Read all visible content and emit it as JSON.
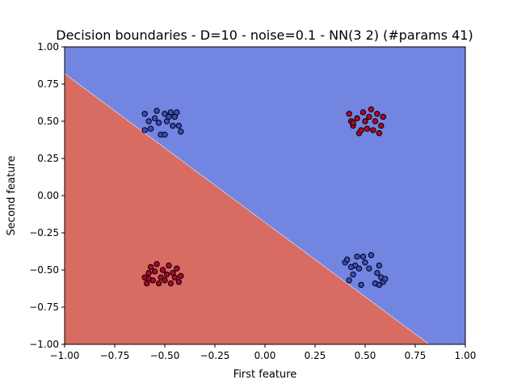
{
  "chart_data": {
    "type": "scatter",
    "title": "Decision boundaries - D=10 - noise=0.1 - NN(3 2) (#params 41)",
    "xlabel": "First feature",
    "ylabel": "Second feature",
    "xlim": [
      -1.0,
      1.0
    ],
    "ylim": [
      -1.0,
      1.0
    ],
    "xticks": [
      "−1.00",
      "−0.75",
      "−0.50",
      "−0.25",
      "0.00",
      "0.25",
      "0.50",
      "0.75",
      "1.00"
    ],
    "yticks": [
      "−1.00",
      "−0.75",
      "−0.50",
      "−0.25",
      "0.00",
      "0.25",
      "0.50",
      "0.75",
      "1.00"
    ],
    "grid": false,
    "legend": "none",
    "decision_regions": {
      "boundary_line": {
        "x1": -1.0,
        "y1": 0.82,
        "x2": 0.82,
        "y2": -1.0
      },
      "upper_right_class": "blue",
      "lower_left_class": "red",
      "colors": {
        "blue": "#7285e1",
        "red": "#d86b62"
      }
    },
    "series": [
      {
        "class": "blue",
        "color": "#3b4cc0",
        "points": [
          [
            -0.6,
            0.55
          ],
          [
            -0.58,
            0.5
          ],
          [
            -0.57,
            0.45
          ],
          [
            -0.55,
            0.52
          ],
          [
            -0.54,
            0.57
          ],
          [
            -0.53,
            0.49
          ],
          [
            -0.52,
            0.41
          ],
          [
            -0.5,
            0.55
          ],
          [
            -0.5,
            0.41
          ],
          [
            -0.49,
            0.5
          ],
          [
            -0.47,
            0.56
          ],
          [
            -0.46,
            0.47
          ],
          [
            -0.45,
            0.53
          ],
          [
            -0.43,
            0.47
          ],
          [
            -0.42,
            0.43
          ],
          [
            -0.6,
            0.44
          ],
          [
            -0.48,
            0.53
          ],
          [
            -0.44,
            0.56
          ],
          [
            0.4,
            -0.45
          ],
          [
            0.41,
            -0.43
          ],
          [
            0.42,
            -0.57
          ],
          [
            0.44,
            -0.53
          ],
          [
            0.45,
            -0.47
          ],
          [
            0.46,
            -0.41
          ],
          [
            0.47,
            -0.49
          ],
          [
            0.48,
            -0.6
          ],
          [
            0.49,
            -0.41
          ],
          [
            0.5,
            -0.45
          ],
          [
            0.52,
            -0.49
          ],
          [
            0.53,
            -0.4
          ],
          [
            0.55,
            -0.59
          ],
          [
            0.56,
            -0.52
          ],
          [
            0.57,
            -0.47
          ],
          [
            0.58,
            -0.55
          ],
          [
            0.59,
            -0.58
          ],
          [
            0.6,
            -0.56
          ],
          [
            0.43,
            -0.48
          ],
          [
            0.57,
            -0.6
          ]
        ]
      },
      {
        "class": "red",
        "color": "#b40426",
        "points": [
          [
            0.42,
            0.55
          ],
          [
            0.43,
            0.5
          ],
          [
            0.44,
            0.47
          ],
          [
            0.46,
            0.52
          ],
          [
            0.47,
            0.42
          ],
          [
            0.48,
            0.44
          ],
          [
            0.49,
            0.56
          ],
          [
            0.5,
            0.5
          ],
          [
            0.51,
            0.45
          ],
          [
            0.52,
            0.53
          ],
          [
            0.53,
            0.58
          ],
          [
            0.54,
            0.44
          ],
          [
            0.55,
            0.5
          ],
          [
            0.56,
            0.55
          ],
          [
            0.57,
            0.42
          ],
          [
            0.58,
            0.47
          ],
          [
            0.59,
            0.53
          ],
          [
            0.44,
            0.49
          ],
          [
            -0.6,
            -0.55
          ],
          [
            -0.59,
            -0.59
          ],
          [
            -0.58,
            -0.52
          ],
          [
            -0.57,
            -0.48
          ],
          [
            -0.56,
            -0.57
          ],
          [
            -0.55,
            -0.51
          ],
          [
            -0.54,
            -0.46
          ],
          [
            -0.53,
            -0.59
          ],
          [
            -0.52,
            -0.55
          ],
          [
            -0.51,
            -0.5
          ],
          [
            -0.5,
            -0.57
          ],
          [
            -0.49,
            -0.53
          ],
          [
            -0.48,
            -0.47
          ],
          [
            -0.47,
            -0.59
          ],
          [
            -0.46,
            -0.52
          ],
          [
            -0.45,
            -0.55
          ],
          [
            -0.44,
            -0.49
          ],
          [
            -0.43,
            -0.58
          ],
          [
            -0.42,
            -0.54
          ],
          [
            -0.58,
            -0.56
          ]
        ]
      }
    ]
  }
}
